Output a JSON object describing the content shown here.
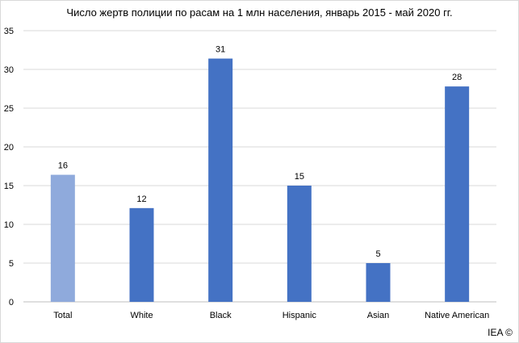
{
  "chart_data": {
    "type": "bar",
    "title": "Число жертв полиции по расам на 1 млн населения, январь 2015 - май 2020 гг.",
    "categories": [
      "Total",
      "White",
      "Black",
      "Hispanic",
      "Asian",
      "Native American"
    ],
    "values": [
      16.4,
      12.1,
      31.4,
      15.0,
      5.0,
      27.8
    ],
    "data_labels": [
      "16",
      "12",
      "31",
      "15",
      "5",
      "28"
    ],
    "ylim": [
      0,
      35
    ],
    "yticks": [
      "0",
      "5",
      "10",
      "15",
      "20",
      "25",
      "30",
      "35"
    ],
    "grid": true,
    "legend": "none",
    "colors": {
      "highlight": "#8faadc",
      "bar": "#4472c4",
      "grid": "#d9d9d9",
      "axis": "#bfbfbf"
    },
    "highlight_category": "Total"
  },
  "credit": "IEA ©"
}
